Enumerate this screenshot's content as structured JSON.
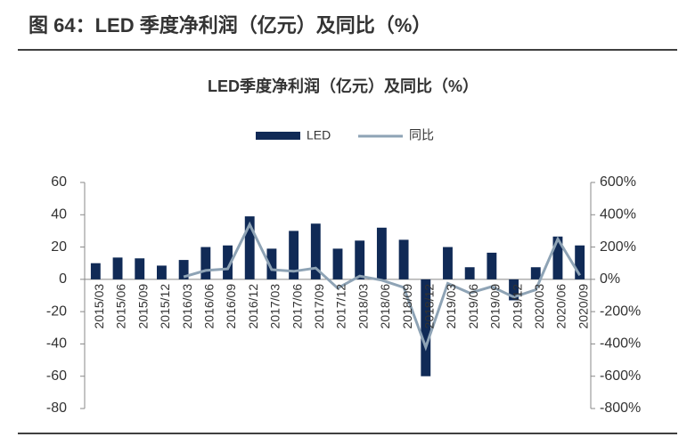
{
  "header": {
    "title": "图 64：LED 季度净利润（亿元）及同比（%）"
  },
  "chart_data": {
    "type": "bar-line",
    "title": "LED季度净利润（亿元）及同比（%）",
    "categories": [
      "2015/03",
      "2015/06",
      "2015/09",
      "2015/12",
      "2016/03",
      "2016/06",
      "2016/09",
      "2016/12",
      "2017/03",
      "2017/06",
      "2017/09",
      "2017/12",
      "2018/03",
      "2018/06",
      "2018/09",
      "2018/12",
      "2019/03",
      "2019/06",
      "2019/09",
      "2019/12",
      "2020/03",
      "2020/06",
      "2020/09"
    ],
    "series": [
      {
        "name": "LED",
        "type": "bar",
        "color": "#102a56",
        "values": [
          10,
          13.5,
          13,
          8.5,
          12,
          20,
          21,
          39,
          19,
          30,
          34.5,
          19,
          24,
          32,
          24.5,
          -60,
          20,
          7.5,
          16.5,
          -13,
          7.5,
          26.5,
          21
        ]
      },
      {
        "name": "同比",
        "type": "line",
        "axis": "y2",
        "color": "#8ea3b5",
        "values": [
          null,
          null,
          null,
          null,
          15,
          55,
          65,
          340,
          60,
          50,
          70,
          -55,
          20,
          -5,
          -50,
          -420,
          -25,
          -85,
          -45,
          -110,
          -65,
          250,
          25
        ]
      }
    ],
    "ylim": [
      -80,
      60
    ],
    "yticks": [
      -80,
      -60,
      -40,
      -20,
      0,
      20,
      40,
      60
    ],
    "y2lim": [
      -800,
      600
    ],
    "y2ticks": [
      {
        "value": -800,
        "label": "-800%"
      },
      {
        "value": -600,
        "label": "-600%"
      },
      {
        "value": -400,
        "label": "-400%"
      },
      {
        "value": -200,
        "label": "-200%"
      },
      {
        "value": 0,
        "label": "0%"
      },
      {
        "value": 200,
        "label": "200%"
      },
      {
        "value": 400,
        "label": "400%"
      },
      {
        "value": 600,
        "label": "600%"
      }
    ],
    "legend": "top"
  }
}
